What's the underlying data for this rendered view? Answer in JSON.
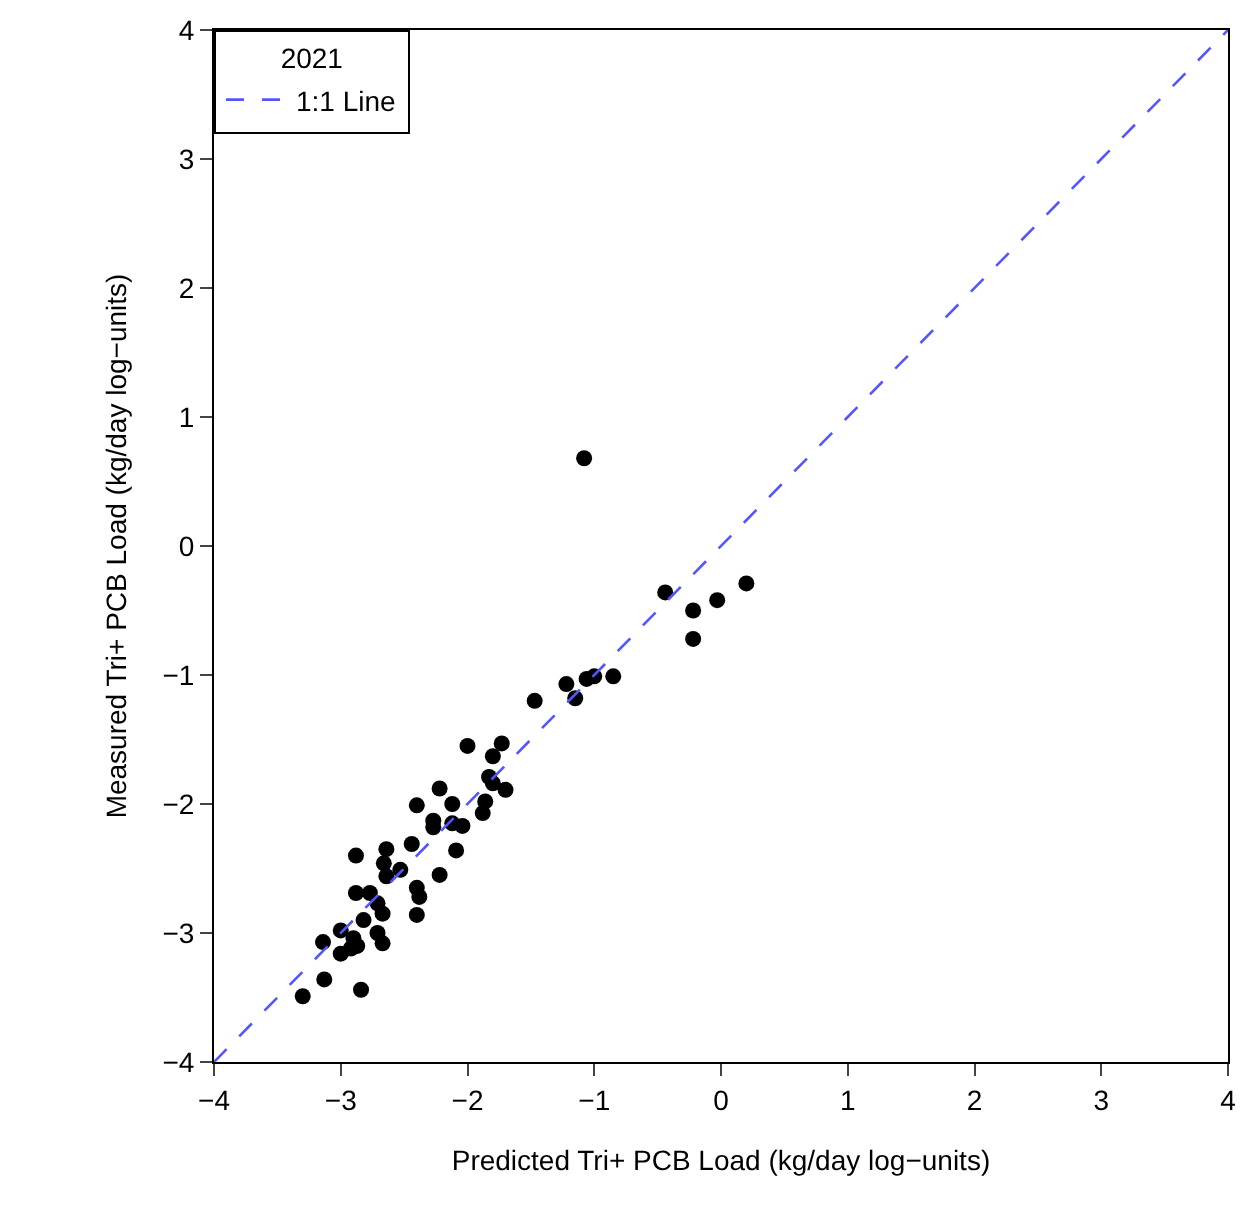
{
  "chart_data": {
    "type": "scatter",
    "xlabel": "Predicted Tri+ PCB Load (kg/day log−units)",
    "ylabel": "Measured Tri+ PCB Load (kg/day log−units)",
    "legend_title": "2021",
    "legend": "top left",
    "grid": false,
    "xlim": [
      -4,
      4
    ],
    "ylim": [
      -4,
      4
    ],
    "xticks": [
      {
        "value": -4,
        "label": "−4"
      },
      {
        "value": -3,
        "label": "−3"
      },
      {
        "value": -2,
        "label": "−2"
      },
      {
        "value": -1,
        "label": "−1"
      },
      0,
      1,
      2,
      3,
      4
    ],
    "yticks": [
      {
        "value": -4,
        "label": "−4"
      },
      {
        "value": -3,
        "label": "−3"
      },
      {
        "value": -2,
        "label": "−2"
      },
      {
        "value": -1,
        "label": "−1"
      },
      0,
      1,
      2,
      3,
      4
    ],
    "series": [
      {
        "color": "#000000",
        "marker": "circle",
        "x": [
          -2.0,
          -1.73,
          -1.8,
          -1.83,
          -1.7,
          -1.8,
          -1.86,
          -1.88,
          -2.22,
          -2.4,
          -2.12,
          -2.27,
          -2.27,
          -2.12,
          -2.04,
          -2.09,
          -2.44,
          -2.64,
          -2.88,
          -2.66,
          -2.53,
          -2.64,
          -2.22,
          -2.4,
          -2.38,
          -2.4,
          -2.88,
          -2.77,
          -2.71,
          -2.67,
          -2.82,
          -3.0,
          -3.14,
          -2.9,
          -2.71,
          -2.67,
          -2.87,
          -3.0,
          -2.92,
          -3.13,
          -3.3,
          -2.84,
          -1.08,
          -0.44,
          -0.22,
          -0.22,
          -0.03,
          0.2,
          -0.85,
          -1.0,
          -1.06,
          -1.22,
          -1.15,
          -1.47
        ],
        "values": [
          -1.55,
          -1.53,
          -1.63,
          -1.79,
          -1.89,
          -1.84,
          -1.98,
          -2.07,
          -1.88,
          -2.01,
          -2.0,
          -2.13,
          -2.18,
          -2.15,
          -2.17,
          -2.36,
          -2.31,
          -2.35,
          -2.4,
          -2.46,
          -2.51,
          -2.56,
          -2.55,
          -2.65,
          -2.72,
          -2.86,
          -2.69,
          -2.69,
          -2.77,
          -2.85,
          -2.9,
          -2.98,
          -3.07,
          -3.04,
          -3.0,
          -3.08,
          -3.1,
          -3.16,
          -3.12,
          -3.36,
          -3.49,
          -3.44,
          0.68,
          -0.36,
          -0.5,
          -0.72,
          -0.42,
          -0.29,
          -1.01,
          -1.01,
          -1.03,
          -1.07,
          -1.18,
          -1.2
        ]
      },
      {
        "type": "line",
        "name": "1:1 Line",
        "color": "#5555ff",
        "line_style": "dashed",
        "x": [
          -4,
          4
        ],
        "values": [
          -4,
          4
        ]
      }
    ]
  }
}
